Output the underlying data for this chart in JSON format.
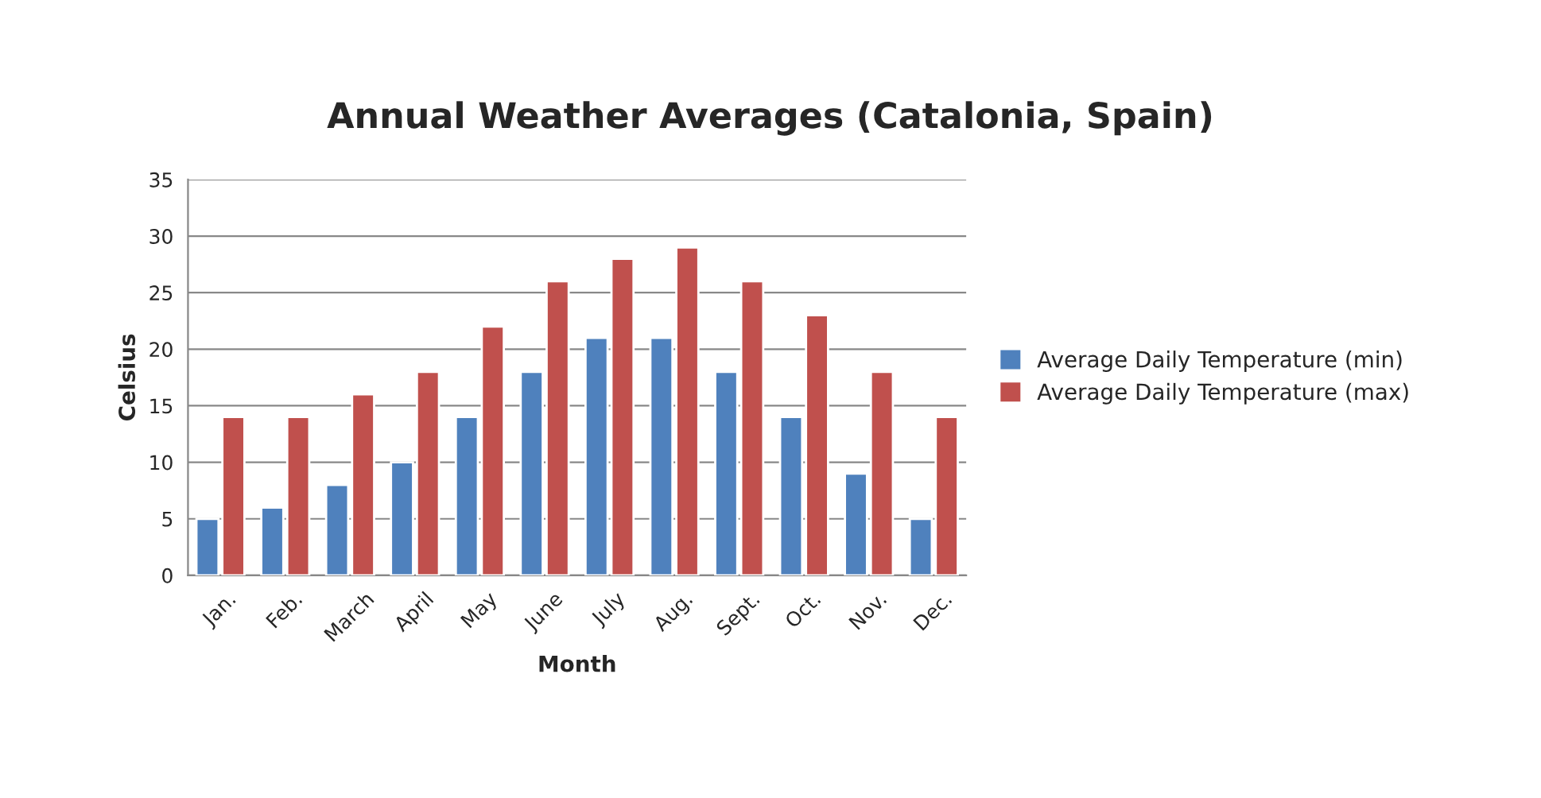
{
  "chart_data": {
    "type": "bar",
    "title": "Annual Weather Averages (Catalonia, Spain)",
    "xlabel": "Month",
    "ylabel": "Celsius",
    "categories": [
      "Jan.",
      "Feb.",
      "March",
      "April",
      "May",
      "June",
      "July",
      "Aug.",
      "Sept.",
      "Oct.",
      "Nov.",
      "Dec."
    ],
    "series": [
      {
        "name": "Average Daily Temperature (min)",
        "color": "#4f81bd",
        "values": [
          5,
          6,
          8,
          10,
          14,
          18,
          21,
          21,
          18,
          14,
          9,
          5
        ]
      },
      {
        "name": "Average Daily Temperature (max)",
        "color": "#c0504d",
        "values": [
          14,
          14,
          16,
          18,
          22,
          26,
          28,
          29,
          26,
          23,
          18,
          14
        ]
      }
    ],
    "ylim": [
      0,
      35
    ],
    "yticks": [
      0,
      5,
      10,
      15,
      20,
      25,
      30,
      35
    ],
    "grid": "y",
    "legend": "right"
  }
}
